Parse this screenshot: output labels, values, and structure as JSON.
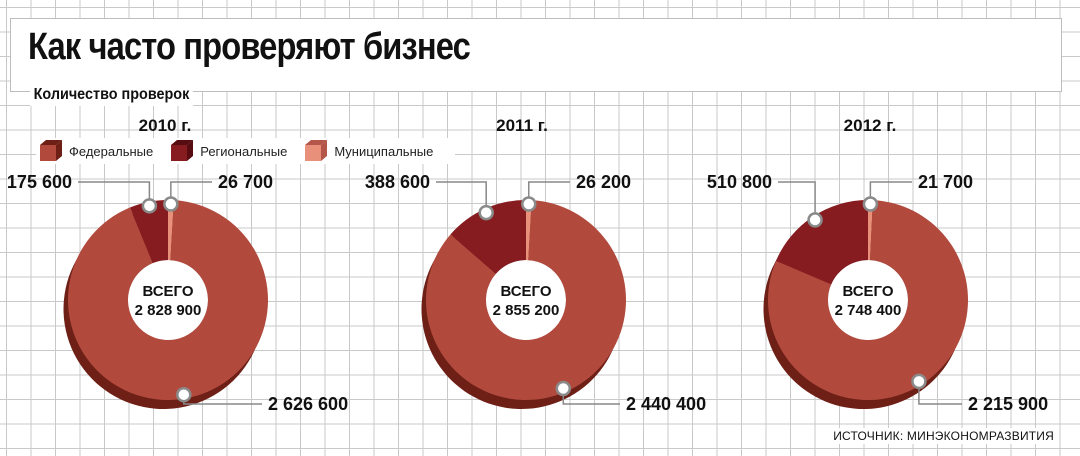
{
  "title": "Как часто проверяют бизнес",
  "subtitle": "Количество проверок",
  "source": "ИСТОЧНИК: МИНЭКОНОМРАЗВИТИЯ",
  "legend": [
    {
      "label": "Федеральные",
      "color": "#b14a3d",
      "dark": "#6e1f16"
    },
    {
      "label": "Региональные",
      "color": "#861b20",
      "dark": "#560c10"
    },
    {
      "label": "Муниципальные",
      "color": "#e8907a",
      "dark": "#b4574a"
    }
  ],
  "chart_data": [
    {
      "type": "pie",
      "title": "2010 г.",
      "total_label": "ВСЕГО",
      "total": "2 828 900",
      "slices": [
        {
          "name": "Федеральные",
          "value": 2626600,
          "label": "2 626 600"
        },
        {
          "name": "Региональные",
          "value": 175600,
          "label": "175 600"
        },
        {
          "name": "Муниципальные",
          "value": 26700,
          "label": "26 700"
        }
      ]
    },
    {
      "type": "pie",
      "title": "2011 г.",
      "total_label": "ВСЕГО",
      "total": "2 855 200",
      "slices": [
        {
          "name": "Федеральные",
          "value": 2440400,
          "label": "2 440 400"
        },
        {
          "name": "Региональные",
          "value": 388600,
          "label": "388 600"
        },
        {
          "name": "Муниципальные",
          "value": 26200,
          "label": "26 200"
        }
      ]
    },
    {
      "type": "pie",
      "title": "2012 г.",
      "total_label": "ВСЕГО",
      "total": "2 748 400",
      "slices": [
        {
          "name": "Федеральные",
          "value": 2215900,
          "label": "2 215 900"
        },
        {
          "name": "Региональные",
          "value": 510800,
          "label": "510 800"
        },
        {
          "name": "Муниципальные",
          "value": 21700,
          "label": "21 700"
        }
      ]
    }
  ]
}
